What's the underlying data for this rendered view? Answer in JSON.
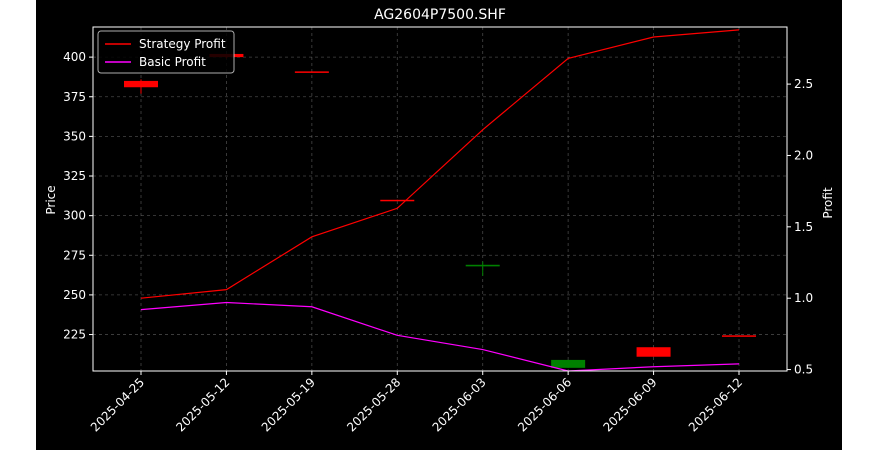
{
  "chart_data": {
    "type": "candlestick-line",
    "title": "AG2604P7500.SHF",
    "xlabel": "",
    "ylabel_left": "Price",
    "ylabel_right": "Profit",
    "categories": [
      "2025-04-25",
      "2025-05-12",
      "2025-05-19",
      "2025-05-28",
      "2025-06-03",
      "2025-06-06",
      "2025-06-09",
      "2025-06-12"
    ],
    "ylim_left": [
      202,
      419
    ],
    "ylim_right": [
      0.49,
      2.9
    ],
    "yticks_left": [
      225,
      250,
      275,
      300,
      325,
      350,
      375,
      400
    ],
    "yticks_right": [
      0.5,
      1.0,
      1.5,
      2.0,
      2.5
    ],
    "grid": true,
    "legend_position": "top-left",
    "candles": [
      {
        "x": "2025-04-25",
        "open": 385,
        "close": 381,
        "high": 386,
        "low": 377,
        "color": "#ff0000"
      },
      {
        "x": "2025-05-12",
        "open": 402,
        "close": 400,
        "high": 402,
        "low": 399,
        "color": "#ff0000"
      },
      {
        "x": "2025-05-19",
        "open": 391,
        "close": 390.5,
        "high": 391,
        "low": 390.5,
        "color": "#ff0000"
      },
      {
        "x": "2025-05-28",
        "open": 310,
        "close": 309.5,
        "high": 310,
        "low": 309.5,
        "color": "#ff0000"
      },
      {
        "x": "2025-06-03",
        "open": 268,
        "close": 269,
        "high": 271,
        "low": 262,
        "color": "#008000"
      },
      {
        "x": "2025-06-06",
        "open": 204,
        "close": 209,
        "high": 209,
        "low": 204,
        "color": "#008000"
      },
      {
        "x": "2025-06-09",
        "open": 217,
        "close": 211,
        "high": 217,
        "low": 211,
        "color": "#ff0000"
      },
      {
        "x": "2025-06-12",
        "open": 224.5,
        "close": 224,
        "high": 224.5,
        "low": 224,
        "color": "#ff0000"
      }
    ],
    "series": [
      {
        "name": "Strategy Profit",
        "axis": "right",
        "color": "#ff0000",
        "values": [
          1.0,
          1.06,
          1.43,
          1.63,
          2.18,
          2.68,
          2.83,
          2.88
        ]
      },
      {
        "name": "Basic Profit",
        "axis": "right",
        "color": "#ff00ff",
        "values": [
          0.92,
          0.97,
          0.94,
          0.74,
          0.64,
          0.49,
          0.52,
          0.54
        ]
      }
    ]
  },
  "colors": {
    "background": "#000000",
    "page": "#ffffff",
    "foreground": "#ffffff",
    "grid": "#7f7f7f"
  }
}
